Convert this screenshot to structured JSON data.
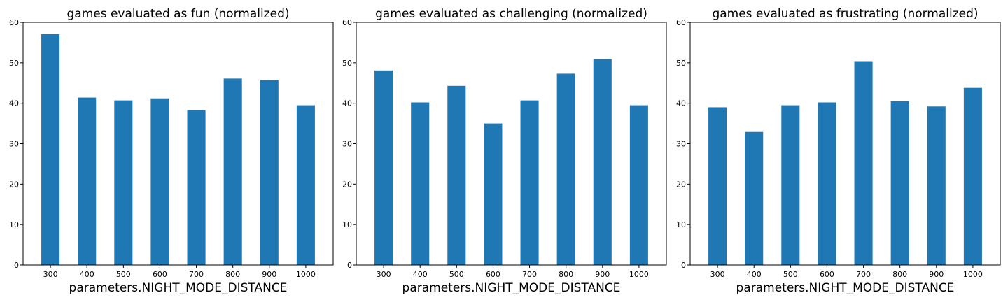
{
  "style": {
    "bar_color": "#1f77b4",
    "axis_color": "#000000",
    "background": "#ffffff"
  },
  "chart_data": [
    {
      "type": "bar",
      "title": "games evaluated as fun (normalized)",
      "xlabel": "parameters.NIGHT_MODE_DISTANCE",
      "ylabel": "",
      "categories": [
        "300",
        "400",
        "500",
        "600",
        "700",
        "800",
        "900",
        "1000"
      ],
      "values": [
        57.1,
        41.4,
        40.7,
        41.2,
        38.3,
        46.1,
        45.7,
        39.5
      ],
      "ylim": [
        0,
        60
      ],
      "yticks": [
        0,
        10,
        20,
        30,
        40,
        50,
        60
      ],
      "grid": false,
      "legend": "none"
    },
    {
      "type": "bar",
      "title": "games evaluated as challenging (normalized)",
      "xlabel": "parameters.NIGHT_MODE_DISTANCE",
      "ylabel": "",
      "categories": [
        "300",
        "400",
        "500",
        "600",
        "700",
        "800",
        "900",
        "1000"
      ],
      "values": [
        48.1,
        40.2,
        44.3,
        35.0,
        40.7,
        47.3,
        50.9,
        39.5
      ],
      "ylim": [
        0,
        60
      ],
      "yticks": [
        0,
        10,
        20,
        30,
        40,
        50,
        60
      ],
      "grid": false,
      "legend": "none"
    },
    {
      "type": "bar",
      "title": "games evaluated as frustrating (normalized)",
      "xlabel": "parameters.NIGHT_MODE_DISTANCE",
      "ylabel": "",
      "categories": [
        "300",
        "400",
        "500",
        "600",
        "700",
        "800",
        "900",
        "1000"
      ],
      "values": [
        39.0,
        32.9,
        39.5,
        40.2,
        50.4,
        40.5,
        39.2,
        43.8
      ],
      "ylim": [
        0,
        60
      ],
      "yticks": [
        0,
        10,
        20,
        30,
        40,
        50,
        60
      ],
      "grid": false,
      "legend": "none"
    }
  ]
}
